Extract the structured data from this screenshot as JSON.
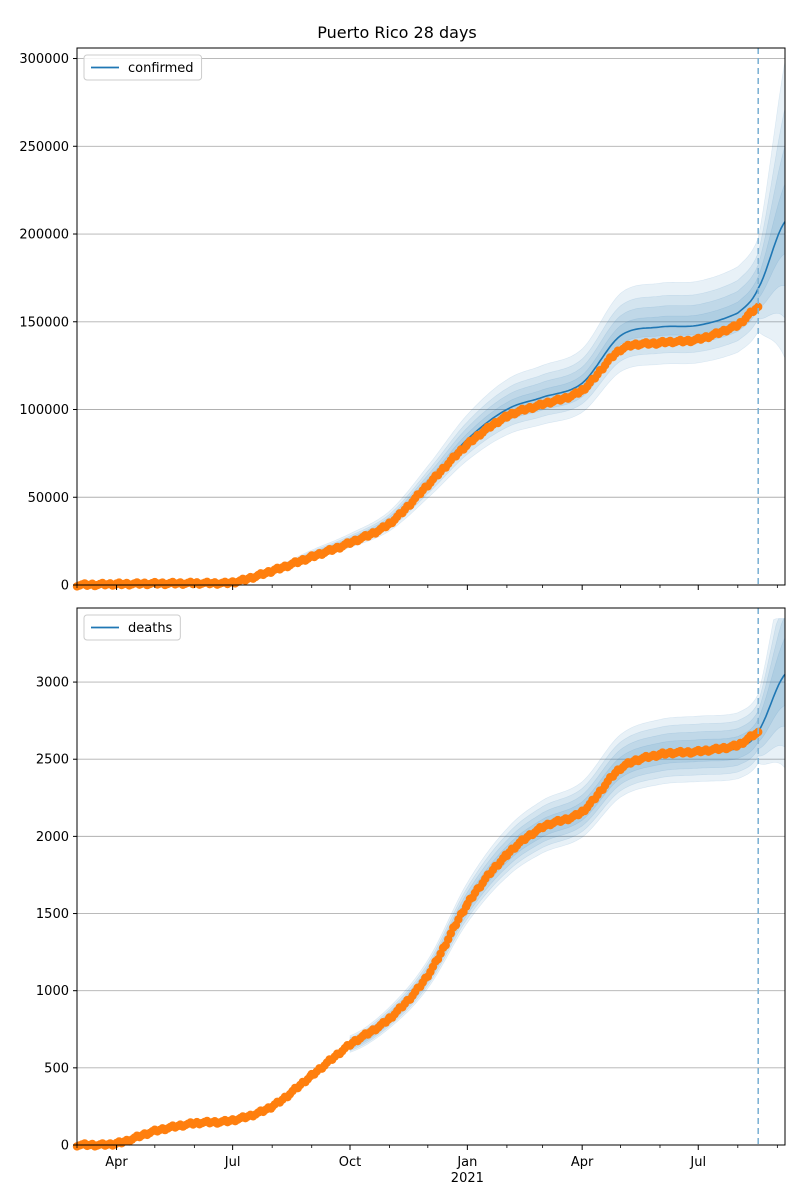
{
  "title": "Puerto Rico 28 days",
  "chart_data": [
    {
      "type": "line",
      "name": "confirmed-panel",
      "legend": "confirmed",
      "legend_position": "top-left",
      "grid": "y",
      "x_range": [
        "2020-03-01",
        "2021-09-07"
      ],
      "ylim": [
        0,
        306000
      ],
      "y_ticks": [
        0,
        50000,
        100000,
        150000,
        200000,
        250000,
        300000
      ],
      "y_tick_labels": [
        "0",
        "50000",
        "100000",
        "150000",
        "200000",
        "250000",
        "300000"
      ],
      "forecast_start": "2021-08-17",
      "model_fit": {
        "x": [
          "2020-03-01",
          "2020-06-01",
          "2020-07-01",
          "2020-08-01",
          "2020-09-01",
          "2020-10-01",
          "2020-11-01",
          "2020-12-01",
          "2021-01-01",
          "2021-02-01",
          "2021-03-01",
          "2021-04-01",
          "2021-05-01",
          "2021-06-01",
          "2021-07-01",
          "2021-08-01",
          "2021-08-17",
          "2021-09-07"
        ],
        "y": [
          0,
          0,
          1000,
          8000,
          17000,
          25000,
          36000,
          58000,
          83000,
          100000,
          107000,
          115000,
          142000,
          147000,
          148000,
          155000,
          169000,
          207000
        ]
      },
      "band_relative_widths": [
        0.04,
        0.08,
        0.12,
        0.17
      ],
      "observed": {
        "x": [
          "2020-03-01",
          "2020-04-01",
          "2020-05-01",
          "2020-06-01",
          "2020-07-01",
          "2020-08-01",
          "2020-09-01",
          "2020-10-01",
          "2020-11-01",
          "2020-12-01",
          "2021-01-01",
          "2021-02-01",
          "2021-03-01",
          "2021-04-01",
          "2021-05-01",
          "2021-06-01",
          "2021-07-01",
          "2021-08-01",
          "2021-08-17"
        ],
        "y": [
          0,
          500,
          800,
          1000,
          1500,
          8000,
          16000,
          24000,
          35000,
          57000,
          80000,
          96000,
          103000,
          111000,
          134000,
          138000,
          140000,
          148000,
          158000
        ]
      }
    },
    {
      "type": "line",
      "name": "deaths-panel",
      "legend": "deaths",
      "legend_position": "top-left",
      "grid": "y",
      "x_range": [
        "2020-03-01",
        "2021-09-07"
      ],
      "ylim": [
        0,
        3480
      ],
      "y_ticks": [
        0,
        500,
        1000,
        1500,
        2000,
        2500,
        3000
      ],
      "y_tick_labels": [
        "0",
        "500",
        "1000",
        "1500",
        "2000",
        "2500",
        "3000"
      ],
      "x_tick_labels": [
        "Apr",
        "Jul",
        "Oct",
        "Jan",
        "Apr",
        "Jul"
      ],
      "x_tick_dates": [
        "2020-04-01",
        "2020-07-01",
        "2020-10-01",
        "2021-01-01",
        "2021-04-01",
        "2021-07-01"
      ],
      "x_minor_dates": [
        "2020-03-01",
        "2020-05-01",
        "2020-06-01",
        "2020-08-01",
        "2020-09-01",
        "2020-11-01",
        "2020-12-01",
        "2021-02-01",
        "2021-03-01",
        "2021-05-01",
        "2021-06-01",
        "2021-08-01",
        "2021-09-01"
      ],
      "year_label": "2021",
      "forecast_start": "2021-08-17",
      "model_fit": {
        "x": [
          "2020-10-01",
          "2020-11-01",
          "2020-12-01",
          "2021-01-01",
          "2021-02-01",
          "2021-03-01",
          "2021-04-01",
          "2021-05-01",
          "2021-06-01",
          "2021-07-01",
          "2021-08-01",
          "2021-08-17",
          "2021-09-07"
        ],
        "y": [
          650,
          820,
          1100,
          1560,
          1880,
          2050,
          2160,
          2440,
          2530,
          2550,
          2570,
          2680,
          3050
        ]
      },
      "band_relative_widths": [
        0.03,
        0.05,
        0.07,
        0.09
      ],
      "observed": {
        "x": [
          "2020-03-01",
          "2020-04-01",
          "2020-05-01",
          "2020-06-01",
          "2020-07-01",
          "2020-08-01",
          "2020-09-01",
          "2020-10-01",
          "2020-11-01",
          "2020-12-01",
          "2021-01-01",
          "2021-02-01",
          "2021-03-01",
          "2021-04-01",
          "2021-05-01",
          "2021-06-01",
          "2021-07-01",
          "2021-08-01",
          "2021-08-17"
        ],
        "y": [
          0,
          10,
          90,
          140,
          160,
          250,
          450,
          650,
          820,
          1100,
          1560,
          1880,
          2060,
          2160,
          2440,
          2530,
          2550,
          2590,
          2670
        ]
      }
    }
  ],
  "colors": {
    "fit": "#1f77b4",
    "band": "#1f77b4",
    "observed": "#ff7f0e",
    "forecast_line": "#7fb3d5",
    "grid": "#b0b0b0"
  }
}
